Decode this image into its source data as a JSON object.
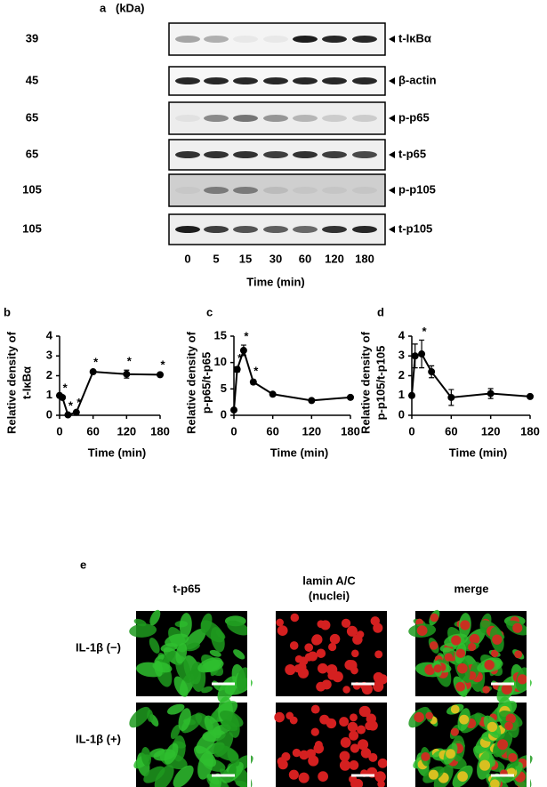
{
  "panel_a": {
    "label": "a",
    "unit": "(kDa)",
    "blots": [
      {
        "kda": "39",
        "name": "t-IκBα"
      },
      {
        "kda": "45",
        "name": "β-actin"
      },
      {
        "kda": "65",
        "name": "p-p65"
      },
      {
        "kda": "65",
        "name": "t-p65"
      },
      {
        "kda": "105",
        "name": "p-p105"
      },
      {
        "kda": "105",
        "name": "t-p105"
      }
    ],
    "times": [
      "0",
      "5",
      "15",
      "30",
      "60",
      "120",
      "180"
    ],
    "xlabel": "Time (min)"
  },
  "chart_data": [
    {
      "panel": "b",
      "type": "line",
      "ylabel": [
        "Relative density of",
        "t-IκBα"
      ],
      "xlabel": "Time (min)",
      "x": [
        0,
        5,
        15,
        30,
        60,
        120,
        180
      ],
      "values": [
        1.0,
        0.9,
        0.02,
        0.15,
        2.2,
        2.08,
        2.05
      ],
      "errors": [
        0.05,
        0.05,
        0.02,
        0.05,
        0.05,
        0.2,
        0.05
      ],
      "significant": [
        false,
        true,
        true,
        true,
        true,
        true,
        true
      ],
      "star": "*",
      "color": "#000000",
      "xlim": [
        0,
        180
      ],
      "xticks": [
        0,
        60,
        120,
        180
      ],
      "ylim": [
        0,
        4
      ],
      "yticks": [
        0,
        1,
        2,
        3,
        4
      ]
    },
    {
      "panel": "c",
      "type": "line",
      "ylabel": [
        "Relative density of",
        "p-p65/t-p65"
      ],
      "xlabel": "Time (min)",
      "x": [
        0,
        5,
        15,
        30,
        60,
        120,
        180
      ],
      "values": [
        1.0,
        8.7,
        12.3,
        6.3,
        4.0,
        2.8,
        3.4
      ],
      "errors": [
        0.1,
        0.5,
        1.0,
        0.4,
        0.2,
        0.2,
        0.2
      ],
      "significant": [
        false,
        true,
        true,
        true,
        false,
        false,
        false
      ],
      "star": "*",
      "color": "#000000",
      "xlim": [
        0,
        180
      ],
      "xticks": [
        0,
        60,
        120,
        180
      ],
      "ylim": [
        0,
        15
      ],
      "yticks": [
        0,
        5,
        10,
        15
      ]
    },
    {
      "panel": "d",
      "type": "line",
      "ylabel": [
        "Relative density of",
        "p-p105/t-p105"
      ],
      "xlabel": "Time (min)",
      "x": [
        0,
        5,
        15,
        30,
        60,
        120,
        180
      ],
      "values": [
        1.0,
        3.0,
        3.1,
        2.2,
        0.9,
        1.1,
        0.95
      ],
      "errors": [
        0.02,
        0.6,
        0.7,
        0.3,
        0.4,
        0.25,
        0.05
      ],
      "significant": [
        false,
        false,
        true,
        false,
        false,
        false,
        false
      ],
      "star": "*",
      "color": "#000000",
      "xlim": [
        0,
        180
      ],
      "xticks": [
        0,
        60,
        120,
        180
      ],
      "ylim": [
        0,
        4
      ],
      "yticks": [
        0,
        1,
        2,
        3,
        4
      ]
    }
  ],
  "panel_e": {
    "label": "e",
    "columns": [
      [
        "t-p65"
      ],
      [
        "lamin A/C",
        "(nuclei)"
      ],
      [
        "merge"
      ]
    ],
    "rows": [
      "IL-1β (−)",
      "IL-1β (+)"
    ]
  }
}
